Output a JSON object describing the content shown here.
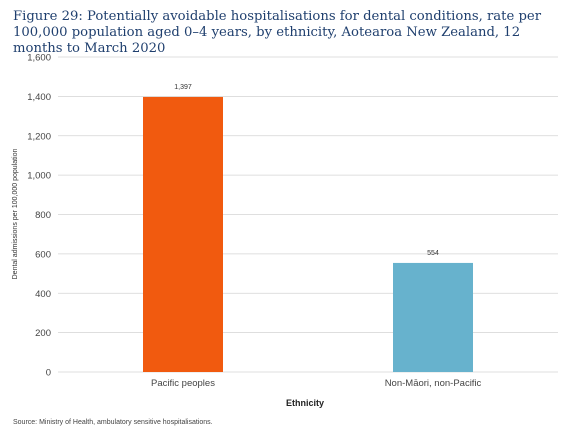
{
  "title": "Figure 29: Potentially avoidable hospitalisations for dental conditions, rate per 100,000 population aged 0–4 years, by ethnicity, Aotearoa New Zealand, 12 months to March 2020",
  "source": "Source: Ministry of Health, ambulatory sensitive hospitalisations.",
  "chart_data": {
    "type": "bar",
    "categories": [
      "Pacific peoples",
      "Non-Māori, non-Pacific"
    ],
    "values": [
      1397,
      554
    ],
    "data_labels": [
      "1,397",
      "554"
    ],
    "bar_colors": [
      "#f15a0f",
      "#67b2cd"
    ],
    "xlabel": "Ethnicity",
    "ylabel": "Dental admissions per 100,000 population",
    "ylim": [
      0,
      1600
    ],
    "yticks": [
      0,
      200,
      400,
      600,
      800,
      1000,
      1200,
      1400,
      1600
    ],
    "ytick_labels": [
      "0",
      "200",
      "400",
      "600",
      "800",
      "1,000",
      "1,200",
      "1,400",
      "1,600"
    ],
    "grid": true,
    "grid_color": "#d4d4d4",
    "legend": "none"
  }
}
